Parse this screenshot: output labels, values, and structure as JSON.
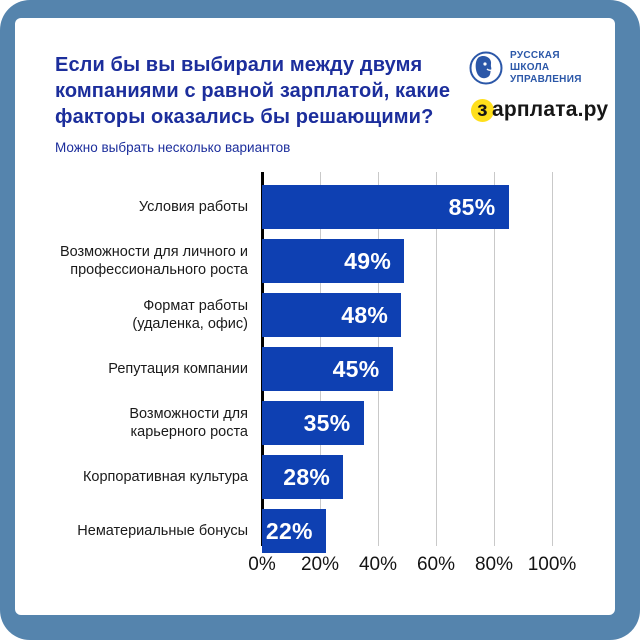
{
  "frame_color": "#5584ad",
  "header": {
    "title_lines": [
      "Если бы вы выбирали между двумя",
      "компаниями с равной зарплатой, какие",
      "факторы оказались бы решающими?"
    ],
    "subtitle": "Можно выбрать несколько вариантов",
    "title_color": "#1c2e9c"
  },
  "logos": {
    "rsu": {
      "text": "РУССКАЯ\nШКОЛА\nУПРАВЛЕНИЯ",
      "color": "#2b57a8"
    },
    "zarplata": {
      "first_letter": "з",
      "rest": "арплата.ру",
      "highlight_color": "#ffdf1b",
      "text_color": "#161616"
    }
  },
  "chart_data": {
    "type": "bar",
    "orientation": "horizontal",
    "title": "Если бы вы выбирали между двумя компаниями с равной зарплатой, какие факторы оказались бы решающими?",
    "subtitle": "Можно выбрать несколько вариантов",
    "categories": [
      "Условия работы",
      "Возможности для личного и\nпрофессионального роста",
      "Формат работы\n(удаленка, офис)",
      "Репутация компании",
      "Возможности для\nкарьерного роста",
      "Корпоративная культура",
      "Нематериальные бонусы"
    ],
    "values": [
      85,
      49,
      48,
      45,
      35,
      28,
      22
    ],
    "value_labels": [
      "85%",
      "49%",
      "48%",
      "45%",
      "35%",
      "28%",
      "22%"
    ],
    "x_ticks": [
      "0%",
      "20%",
      "40%",
      "60%",
      "80%",
      "100%"
    ],
    "x_tick_values": [
      0,
      20,
      40,
      60,
      80,
      100
    ],
    "xlim": [
      0,
      100
    ],
    "grid": true,
    "bar_color": "#0e40b2",
    "legend": "none"
  }
}
